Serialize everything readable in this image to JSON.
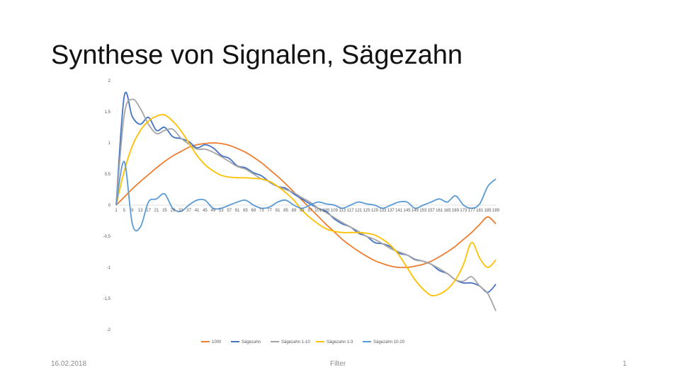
{
  "slide": {
    "title": "Synthese von Signalen, Sägezahn",
    "footer": {
      "date": "16.02.2018",
      "center": "Filter",
      "page": "1"
    }
  },
  "chart_data": {
    "type": "line",
    "title": "",
    "xlabel": "",
    "ylabel": "",
    "ylim": [
      -2,
      2
    ],
    "y_ticks": [
      "2",
      "1,5",
      "1",
      "0,5",
      "0",
      "-0,5",
      "-1",
      "-1,5",
      "-2"
    ],
    "x_tick_labels": [
      "1",
      "5",
      "9",
      "13",
      "17",
      "21",
      "25",
      "29",
      "33",
      "37",
      "41",
      "45",
      "49",
      "53",
      "57",
      "61",
      "65",
      "69",
      "73",
      "77",
      "81",
      "85",
      "89",
      "93",
      "97",
      "101",
      "105",
      "109",
      "113",
      "117",
      "121",
      "125",
      "129",
      "133",
      "137",
      "141",
      "145",
      "149",
      "153",
      "157",
      "161",
      "165",
      "169",
      "173",
      "177",
      "181",
      "185",
      "189"
    ],
    "x": [
      1,
      5,
      9,
      13,
      17,
      21,
      25,
      29,
      33,
      37,
      41,
      45,
      49,
      53,
      57,
      61,
      65,
      69,
      73,
      77,
      81,
      85,
      89,
      93,
      97,
      101,
      105,
      109,
      113,
      117,
      121,
      125,
      129,
      133,
      137,
      141,
      145,
      149,
      153,
      157,
      161,
      165,
      169,
      173,
      177,
      181,
      185,
      189
    ],
    "grid": false,
    "legend_position": "bottom",
    "series": [
      {
        "name": "1000",
        "color": "#ED7D31",
        "values": [
          0.0,
          0.13,
          0.26,
          0.38,
          0.49,
          0.6,
          0.7,
          0.79,
          0.86,
          0.93,
          0.97,
          0.99,
          1.0,
          0.99,
          0.96,
          0.91,
          0.85,
          0.77,
          0.68,
          0.57,
          0.46,
          0.34,
          0.21,
          0.08,
          -0.05,
          -0.18,
          -0.31,
          -0.43,
          -0.55,
          -0.65,
          -0.74,
          -0.82,
          -0.89,
          -0.94,
          -0.98,
          -1.0,
          -1.0,
          -0.98,
          -0.95,
          -0.9,
          -0.83,
          -0.75,
          -0.66,
          -0.55,
          -0.44,
          -0.31,
          -0.19,
          -0.3
        ]
      },
      {
        "name": "Sägezahn",
        "color": "#4472C4",
        "values": [
          0.0,
          1.75,
          1.42,
          1.3,
          1.41,
          1.2,
          1.25,
          1.1,
          1.07,
          1.02,
          0.92,
          0.97,
          0.92,
          0.8,
          0.75,
          0.63,
          0.6,
          0.52,
          0.47,
          0.37,
          0.3,
          0.27,
          0.18,
          0.1,
          0.02,
          -0.05,
          -0.1,
          -0.22,
          -0.3,
          -0.35,
          -0.45,
          -0.5,
          -0.6,
          -0.62,
          -0.67,
          -0.77,
          -0.8,
          -0.87,
          -0.9,
          -0.95,
          -1.05,
          -1.1,
          -1.2,
          -1.25,
          -1.25,
          -1.3,
          -1.4,
          -1.27
        ]
      },
      {
        "name": "Sägezahn 1-10",
        "color": "#A5A5A5",
        "values": [
          0.0,
          1.45,
          1.7,
          1.55,
          1.3,
          1.15,
          1.2,
          1.22,
          1.08,
          0.98,
          0.9,
          0.9,
          0.85,
          0.78,
          0.7,
          0.62,
          0.58,
          0.5,
          0.42,
          0.38,
          0.3,
          0.25,
          0.2,
          0.12,
          0.05,
          -0.05,
          -0.12,
          -0.2,
          -0.28,
          -0.35,
          -0.42,
          -0.5,
          -0.55,
          -0.62,
          -0.7,
          -0.75,
          -0.8,
          -0.88,
          -0.9,
          -0.95,
          -1.02,
          -1.1,
          -1.2,
          -1.22,
          -1.15,
          -1.3,
          -1.42,
          -1.7
        ]
      },
      {
        "name": "Sägezahn 1-3",
        "color": "#FFC000",
        "values": [
          0.0,
          0.55,
          0.95,
          1.2,
          1.35,
          1.43,
          1.45,
          1.35,
          1.2,
          1.0,
          0.8,
          0.65,
          0.55,
          0.48,
          0.45,
          0.44,
          0.44,
          0.43,
          0.42,
          0.38,
          0.3,
          0.2,
          0.08,
          -0.08,
          -0.2,
          -0.3,
          -0.38,
          -0.42,
          -0.44,
          -0.44,
          -0.44,
          -0.45,
          -0.48,
          -0.55,
          -0.65,
          -0.8,
          -1.0,
          -1.2,
          -1.35,
          -1.45,
          -1.43,
          -1.35,
          -1.2,
          -0.95,
          -0.6,
          -0.85,
          -1.0,
          -0.88
        ]
      },
      {
        "name": "Sägezahn 10-20",
        "color": "#5B9BD5",
        "values": [
          0.0,
          0.7,
          -0.3,
          -0.35,
          0.05,
          0.1,
          0.18,
          -0.05,
          -0.1,
          0.0,
          0.08,
          0.08,
          -0.05,
          -0.05,
          0.0,
          0.05,
          0.08,
          0.0,
          -0.05,
          -0.03,
          0.05,
          0.08,
          0.0,
          -0.05,
          0.0,
          0.05,
          0.02,
          0.0,
          -0.05,
          0.0,
          0.05,
          0.02,
          0.0,
          -0.05,
          0.0,
          0.05,
          0.05,
          -0.05,
          0.0,
          0.05,
          0.1,
          0.05,
          0.15,
          0.0,
          -0.05,
          0.02,
          0.3,
          0.42
        ]
      }
    ]
  }
}
